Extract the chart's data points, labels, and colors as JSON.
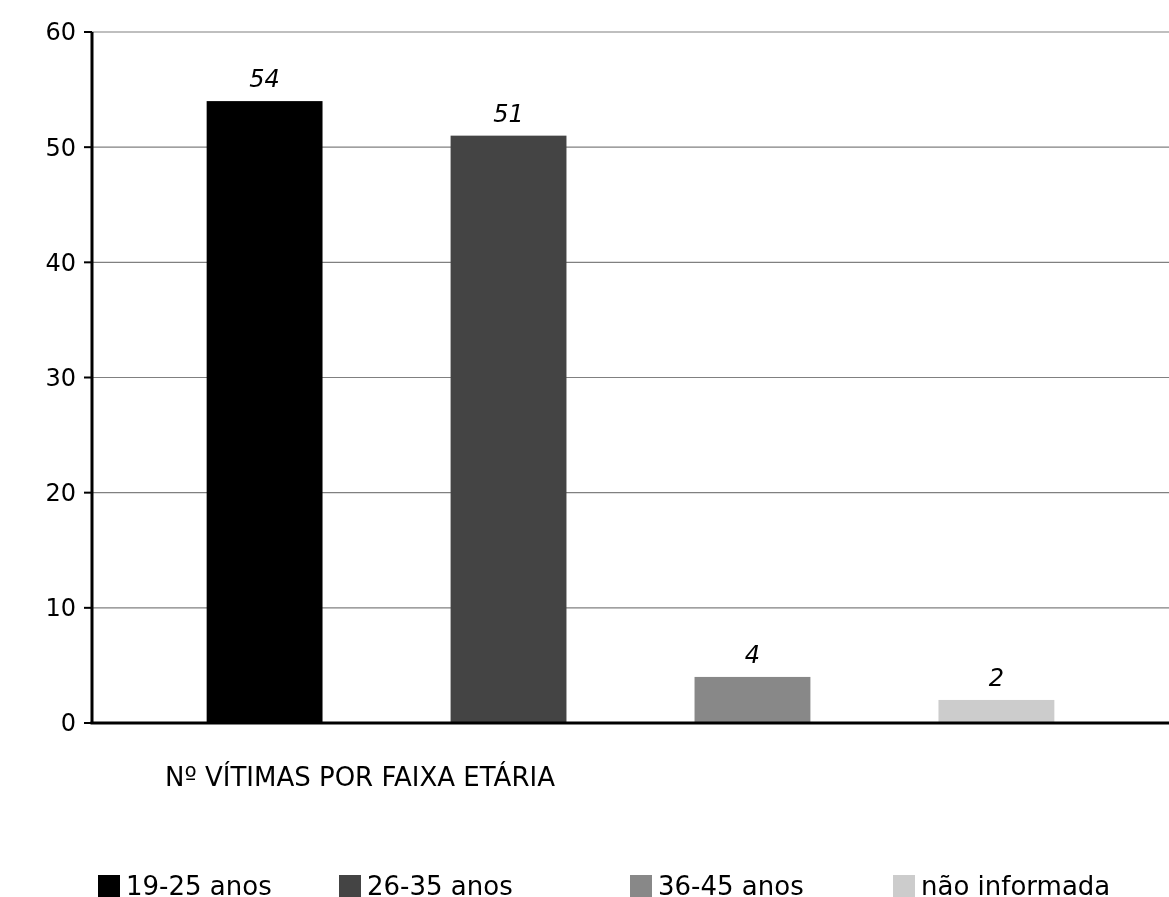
{
  "chart_data": {
    "type": "bar",
    "xlabel": "Nº VÍTIMAS POR FAIXA ETÁRIA",
    "categories": [
      null
    ],
    "series": [
      {
        "name": "19-25 anos",
        "color": "#000000",
        "values": [
          54
        ]
      },
      {
        "name": "26-35 anos",
        "color": "#444444",
        "values": [
          51
        ]
      },
      {
        "name": "36-45 anos",
        "color": "#888888",
        "values": [
          4
        ]
      },
      {
        "name": "não informada",
        "color": "#cccccc",
        "values": [
          2
        ]
      }
    ],
    "ylim": [
      0,
      60
    ],
    "yticks": [
      0,
      10,
      20,
      30,
      40,
      50,
      60
    ],
    "grid": "y",
    "data_labels": true,
    "legend": "bottom"
  }
}
